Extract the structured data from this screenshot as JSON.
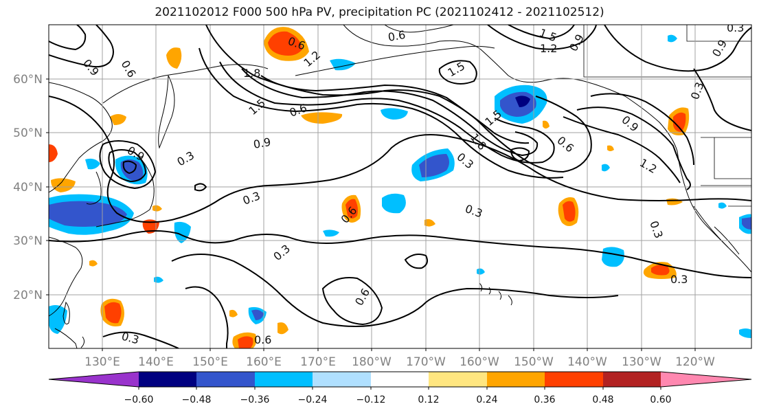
{
  "title": "2021102012 F000 500 hPa PV, precipitation PC (2021102412 - 2021102512)",
  "lat_labels": [
    "60°N",
    "50°N",
    "40°N",
    "30°N",
    "20°N"
  ],
  "lon_labels": [
    "130°E",
    "140°E",
    "150°E",
    "160°E",
    "170°E",
    "180°W",
    "170°W",
    "160°W",
    "150°W",
    "140°W",
    "130°W",
    "120°W"
  ],
  "colorbar": {
    "ticks": [
      "−0.60",
      "−0.48",
      "−0.36",
      "−0.24",
      "−0.12",
      "0.12",
      "0.24",
      "0.36",
      "0.48",
      "0.60"
    ],
    "colors": [
      "#9933cc",
      "#000080",
      "#3355cc",
      "#00bfff",
      "#b0e0ff",
      "#ffffff",
      "#ffe680",
      "#ffa500",
      "#ff4000",
      "#b22222",
      "#ff88b0"
    ]
  },
  "contour_labels": [
    "0.6",
    "1.5",
    "1.2",
    "0.9",
    "0.6",
    "0.9",
    "1.8",
    "1.2",
    "1.5",
    "1.5",
    "0.6",
    "0.9",
    "0.3",
    "0.9",
    "1.5",
    "1.8",
    "0.6",
    "0.3",
    "1.2",
    "0.9",
    "0.9",
    "0.3",
    "0.3",
    "0.6",
    "0.3",
    "0.3",
    "0.3",
    "0.6",
    "0.3",
    "0.6",
    "0.3",
    "0.3",
    "0.6"
  ],
  "colors": {
    "grid": "#a0a0a0",
    "coast": "#000000",
    "contour": "#000000"
  }
}
